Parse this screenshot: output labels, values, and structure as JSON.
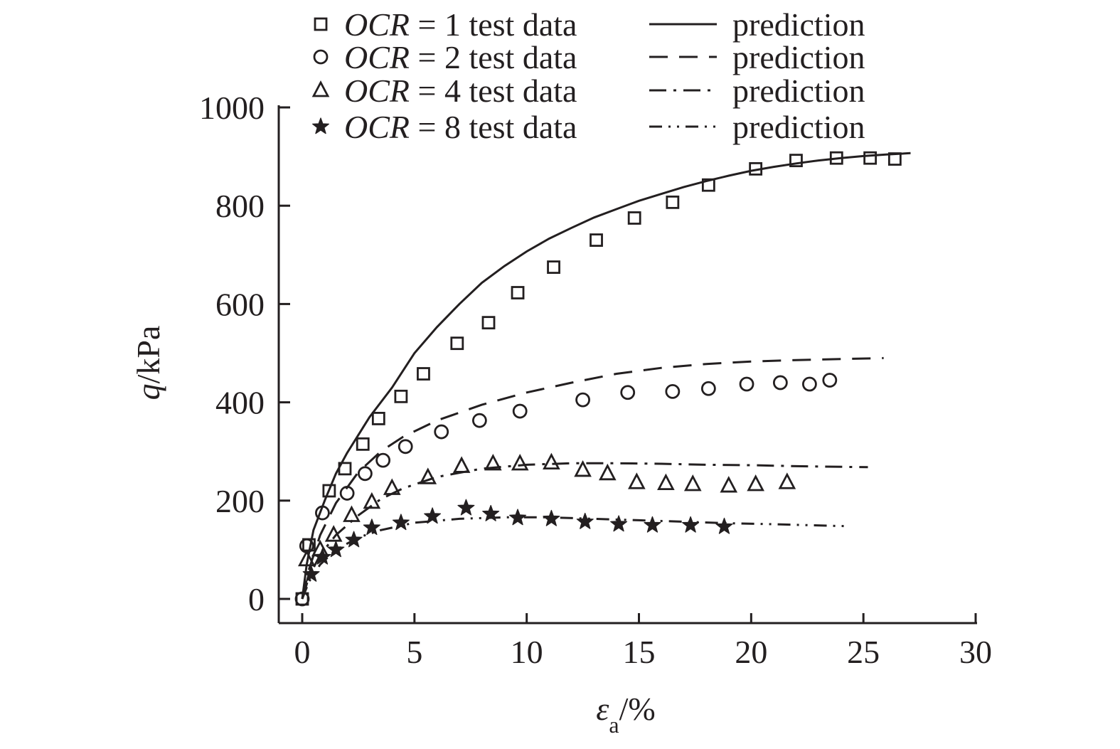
{
  "chart_data": {
    "type": "scatter",
    "xlabel": "ε",
    "xlabel_sub": "a",
    "xlabel_unit": "/%",
    "ylabel": "q",
    "ylabel_unit": "/kPa",
    "xlim": [
      0,
      30
    ],
    "ylim": [
      0,
      1000
    ],
    "xticks": [
      "0",
      "5",
      "10",
      "15",
      "20",
      "25",
      "30"
    ],
    "yticks": [
      "0",
      "200",
      "400",
      "600",
      "800",
      "1000"
    ],
    "grid": false,
    "legend_position": "top",
    "colors": {
      "ink": "#231f20"
    },
    "series": [
      {
        "ocr_label": "OCR",
        "equals": "= 1 test data",
        "prediction_label": "prediction",
        "marker": "square",
        "line_style": "solid",
        "test_data": [
          [
            0,
            0
          ],
          [
            0.3,
            110
          ],
          [
            1.2,
            220
          ],
          [
            1.9,
            265
          ],
          [
            2.7,
            315
          ],
          [
            3.4,
            367
          ],
          [
            4.4,
            412
          ],
          [
            5.4,
            458
          ],
          [
            6.9,
            520
          ],
          [
            8.3,
            562
          ],
          [
            9.6,
            623
          ],
          [
            11.2,
            675
          ],
          [
            13.1,
            730
          ],
          [
            14.8,
            775
          ],
          [
            16.5,
            807
          ],
          [
            18.1,
            842
          ],
          [
            20.2,
            875
          ],
          [
            22.0,
            892
          ],
          [
            23.8,
            897
          ],
          [
            25.3,
            897
          ],
          [
            26.4,
            895
          ]
        ],
        "prediction": [
          [
            0,
            0
          ],
          [
            0.2,
            70
          ],
          [
            0.5,
            140
          ],
          [
            1,
            200
          ],
          [
            1.5,
            255
          ],
          [
            2,
            297
          ],
          [
            3,
            370
          ],
          [
            4,
            430
          ],
          [
            5,
            500
          ],
          [
            6,
            553
          ],
          [
            7,
            600
          ],
          [
            8,
            643
          ],
          [
            9,
            677
          ],
          [
            10,
            707
          ],
          [
            11,
            733
          ],
          [
            12,
            755
          ],
          [
            13,
            776
          ],
          [
            14,
            793
          ],
          [
            15,
            810
          ],
          [
            16,
            824
          ],
          [
            17,
            838
          ],
          [
            18,
            850
          ],
          [
            19,
            861
          ],
          [
            20,
            871
          ],
          [
            21,
            879
          ],
          [
            22,
            886
          ],
          [
            23,
            892
          ],
          [
            24,
            897
          ],
          [
            25,
            901
          ],
          [
            26,
            904
          ],
          [
            27.1,
            907
          ]
        ]
      },
      {
        "ocr_label": "OCR",
        "equals": "= 2 test data",
        "prediction_label": "prediction",
        "marker": "circle",
        "line_style": "dashed",
        "test_data": [
          [
            0,
            0
          ],
          [
            0.2,
            108
          ],
          [
            0.9,
            175
          ],
          [
            2.0,
            215
          ],
          [
            2.8,
            255
          ],
          [
            3.6,
            282
          ],
          [
            4.6,
            310
          ],
          [
            6.2,
            340
          ],
          [
            7.9,
            363
          ],
          [
            9.7,
            382
          ],
          [
            12.5,
            405
          ],
          [
            14.5,
            420
          ],
          [
            16.5,
            422
          ],
          [
            18.1,
            428
          ],
          [
            19.8,
            437
          ],
          [
            21.3,
            440
          ],
          [
            22.6,
            437
          ],
          [
            23.5,
            445
          ]
        ],
        "prediction": [
          [
            0,
            0
          ],
          [
            0.3,
            60
          ],
          [
            0.8,
            130
          ],
          [
            1.5,
            195
          ],
          [
            2.5,
            258
          ],
          [
            3.5,
            300
          ],
          [
            4.5,
            330
          ],
          [
            6,
            363
          ],
          [
            8,
            395
          ],
          [
            10,
            420
          ],
          [
            12,
            440
          ],
          [
            14,
            458
          ],
          [
            16,
            470
          ],
          [
            18,
            478
          ],
          [
            20,
            483
          ],
          [
            22,
            486
          ],
          [
            24,
            488
          ],
          [
            25.9,
            490
          ]
        ]
      },
      {
        "ocr_label": "OCR",
        "equals": "= 4 test data",
        "prediction_label": "prediction",
        "marker": "triangle",
        "line_style": "dash-dot",
        "test_data": [
          [
            0.2,
            80
          ],
          [
            0.8,
            100
          ],
          [
            1.4,
            130
          ],
          [
            2.2,
            170
          ],
          [
            3.1,
            197
          ],
          [
            4.0,
            225
          ],
          [
            5.6,
            247
          ],
          [
            7.1,
            270
          ],
          [
            8.5,
            275
          ],
          [
            9.7,
            275
          ],
          [
            11.1,
            277
          ],
          [
            12.5,
            262
          ],
          [
            13.6,
            255
          ],
          [
            14.9,
            237
          ],
          [
            16.2,
            235
          ],
          [
            17.4,
            233
          ],
          [
            19.0,
            230
          ],
          [
            20.2,
            233
          ],
          [
            21.6,
            237
          ]
        ],
        "prediction": [
          [
            0,
            0
          ],
          [
            0.3,
            45
          ],
          [
            0.8,
            90
          ],
          [
            1.5,
            130
          ],
          [
            2.5,
            170
          ],
          [
            3.5,
            203
          ],
          [
            4.5,
            225
          ],
          [
            6,
            248
          ],
          [
            8,
            265
          ],
          [
            10,
            273
          ],
          [
            12,
            276
          ],
          [
            14,
            276
          ],
          [
            16,
            275
          ],
          [
            18,
            273
          ],
          [
            20,
            272
          ],
          [
            22,
            270
          ],
          [
            25.2,
            268
          ]
        ]
      },
      {
        "ocr_label": "OCR",
        "equals": "= 8 test data",
        "prediction_label": "prediction",
        "marker": "star",
        "line_style": "dash-dot-dot",
        "test_data": [
          [
            0.4,
            50
          ],
          [
            0.9,
            85
          ],
          [
            1.5,
            100
          ],
          [
            2.3,
            120
          ],
          [
            3.1,
            145
          ],
          [
            4.4,
            155
          ],
          [
            5.8,
            168
          ],
          [
            7.3,
            185
          ],
          [
            8.4,
            173
          ],
          [
            9.6,
            165
          ],
          [
            11.1,
            163
          ],
          [
            12.6,
            157
          ],
          [
            14.1,
            152
          ],
          [
            15.6,
            150
          ],
          [
            17.3,
            150
          ],
          [
            18.8,
            147
          ]
        ],
        "prediction": [
          [
            0,
            0
          ],
          [
            0.3,
            35
          ],
          [
            0.8,
            70
          ],
          [
            1.5,
            100
          ],
          [
            2.5,
            125
          ],
          [
            3.5,
            140
          ],
          [
            5,
            155
          ],
          [
            7,
            163
          ],
          [
            9,
            166
          ],
          [
            11,
            166
          ],
          [
            13,
            163
          ],
          [
            15,
            160
          ],
          [
            17,
            157
          ],
          [
            19,
            154
          ],
          [
            21,
            152
          ],
          [
            24.2,
            148
          ]
        ]
      }
    ]
  }
}
